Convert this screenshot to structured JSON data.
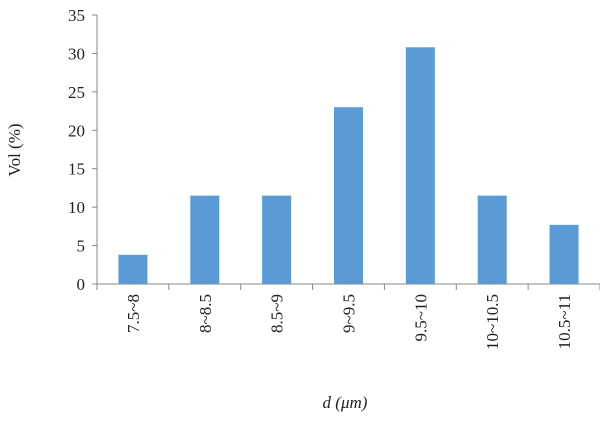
{
  "chart_data": {
    "type": "bar",
    "x_label": "d (μm)",
    "y_label": "Vol (%)",
    "categories": [
      "7.5~8",
      "8~8.5",
      "8.5~9",
      "9~9.5",
      "9.5~10",
      "10~10.5",
      "10.5~11"
    ],
    "values": [
      3.8,
      11.5,
      11.5,
      23,
      30.8,
      11.5,
      7.7
    ],
    "color": "#5b9bd5",
    "ylim": [
      0,
      35
    ],
    "yticks": [
      0,
      5,
      10,
      15,
      20,
      25,
      30,
      35
    ],
    "grid": false
  }
}
